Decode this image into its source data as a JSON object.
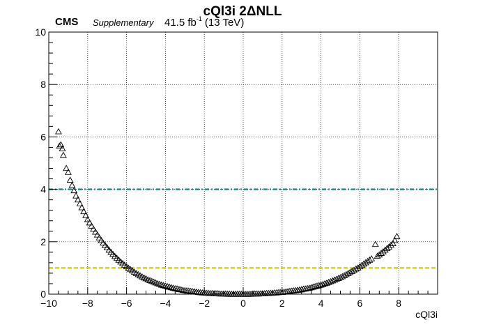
{
  "header": {
    "title": "cQl3i 2ΔNLL",
    "experiment": "CMS",
    "status": "Supplementary",
    "lumi_value": "41.5 fb",
    "lumi_exponent": "-1",
    "energy": "(13 TeV)"
  },
  "chart_data": {
    "type": "scatter",
    "title": "cQl3i 2ΔNLL",
    "xlabel": "cQl3i",
    "ylabel": "",
    "xlim": [
      -10,
      10
    ],
    "ylim": [
      0,
      10
    ],
    "xticks": [
      -10,
      -8,
      -6,
      -4,
      -2,
      0,
      2,
      4,
      6,
      8
    ],
    "xtick_labels": [
      "−10",
      "−8",
      "−6",
      "−4",
      "−2",
      "0",
      "2",
      "4",
      "6",
      "8"
    ],
    "yticks": [
      0,
      2,
      4,
      6,
      8,
      10
    ],
    "ytick_labels": [
      "0",
      "2",
      "4",
      "6",
      "8",
      "10"
    ],
    "grid": true,
    "marker": "open-triangle",
    "reference_lines": [
      {
        "y": 4,
        "color": "#2a8a8a",
        "style": "dash-dot"
      },
      {
        "y": 1,
        "color": "#d4d400",
        "style": "dashed"
      }
    ],
    "points": [
      [
        -9.5,
        6.2
      ],
      [
        -9.45,
        5.65
      ],
      [
        -9.38,
        5.7
      ],
      [
        -9.3,
        5.55
      ],
      [
        -9.25,
        5.3
      ],
      [
        -9.1,
        4.8
      ],
      [
        -9.0,
        4.65
      ],
      [
        -8.9,
        4.35
      ],
      [
        -8.8,
        4.15
      ],
      [
        -8.7,
        3.95
      ],
      [
        -8.6,
        3.75
      ],
      [
        -8.5,
        3.6
      ],
      [
        -8.4,
        3.45
      ],
      [
        -8.3,
        3.3
      ],
      [
        -8.2,
        3.15
      ],
      [
        -8.1,
        3.0
      ],
      [
        -8.0,
        2.85
      ],
      [
        -7.9,
        2.72
      ],
      [
        -7.8,
        2.6
      ],
      [
        -7.7,
        2.48
      ],
      [
        -7.6,
        2.37
      ],
      [
        -7.5,
        2.26
      ],
      [
        -7.4,
        2.15
      ],
      [
        -7.3,
        2.05
      ],
      [
        -7.2,
        1.95
      ],
      [
        -7.1,
        1.86
      ],
      [
        -7.0,
        1.77
      ],
      [
        -6.9,
        1.68
      ],
      [
        -6.8,
        1.6
      ],
      [
        -6.7,
        1.52
      ],
      [
        -6.6,
        1.44
      ],
      [
        -6.5,
        1.37
      ],
      [
        -6.4,
        1.3
      ],
      [
        -6.3,
        1.23
      ],
      [
        -6.2,
        1.17
      ],
      [
        -6.1,
        1.11
      ],
      [
        -6.0,
        1.05
      ],
      [
        -5.9,
        0.99
      ],
      [
        -5.8,
        0.94
      ],
      [
        -5.7,
        0.89
      ],
      [
        -5.6,
        0.84
      ],
      [
        -5.5,
        0.79
      ],
      [
        -5.4,
        0.75
      ],
      [
        -5.3,
        0.7
      ],
      [
        -5.2,
        0.66
      ],
      [
        -5.1,
        0.62
      ],
      [
        -5.0,
        0.59
      ],
      [
        -4.9,
        0.55
      ],
      [
        -4.8,
        0.52
      ],
      [
        -4.7,
        0.49
      ],
      [
        -4.6,
        0.46
      ],
      [
        -4.5,
        0.43
      ],
      [
        -4.4,
        0.4
      ],
      [
        -4.3,
        0.38
      ],
      [
        -4.2,
        0.35
      ],
      [
        -4.1,
        0.33
      ],
      [
        -4.0,
        0.31
      ],
      [
        -3.9,
        0.29
      ],
      [
        -3.8,
        0.27
      ],
      [
        -3.7,
        0.25
      ],
      [
        -3.6,
        0.23
      ],
      [
        -3.5,
        0.21
      ],
      [
        -3.4,
        0.2
      ],
      [
        -3.3,
        0.18
      ],
      [
        -3.2,
        0.17
      ],
      [
        -3.1,
        0.15
      ],
      [
        -3.0,
        0.14
      ],
      [
        -2.9,
        0.13
      ],
      [
        -2.8,
        0.12
      ],
      [
        -2.7,
        0.11
      ],
      [
        -2.6,
        0.1
      ],
      [
        -2.5,
        0.09
      ],
      [
        -2.4,
        0.08
      ],
      [
        -2.3,
        0.07
      ],
      [
        -2.2,
        0.06
      ],
      [
        -2.1,
        0.05
      ],
      [
        -2.0,
        0.05
      ],
      [
        -1.9,
        0.04
      ],
      [
        -1.8,
        0.04
      ],
      [
        -1.7,
        0.03
      ],
      [
        -1.6,
        0.03
      ],
      [
        -1.5,
        0.02
      ],
      [
        -1.4,
        0.02
      ],
      [
        -1.3,
        0.02
      ],
      [
        -1.2,
        0.01
      ],
      [
        -1.1,
        0.01
      ],
      [
        -1.0,
        0.01
      ],
      [
        -0.9,
        0.01
      ],
      [
        -0.8,
        0.0
      ],
      [
        -0.7,
        0.0
      ],
      [
        -0.6,
        0.0
      ],
      [
        -0.5,
        0.0
      ],
      [
        -0.4,
        0.0
      ],
      [
        -0.3,
        0.0
      ],
      [
        -0.2,
        0.0
      ],
      [
        -0.1,
        0.0
      ],
      [
        0.0,
        0.0
      ],
      [
        0.1,
        0.0
      ],
      [
        0.2,
        0.0
      ],
      [
        0.3,
        0.0
      ],
      [
        0.4,
        0.0
      ],
      [
        0.5,
        0.01
      ],
      [
        0.6,
        0.01
      ],
      [
        0.7,
        0.01
      ],
      [
        0.8,
        0.01
      ],
      [
        0.9,
        0.02
      ],
      [
        1.0,
        0.02
      ],
      [
        1.1,
        0.02
      ],
      [
        1.2,
        0.03
      ],
      [
        1.3,
        0.03
      ],
      [
        1.4,
        0.04
      ],
      [
        1.5,
        0.04
      ],
      [
        1.6,
        0.05
      ],
      [
        1.7,
        0.05
      ],
      [
        1.8,
        0.06
      ],
      [
        1.9,
        0.07
      ],
      [
        2.0,
        0.07
      ],
      [
        2.1,
        0.08
      ],
      [
        2.2,
        0.09
      ],
      [
        2.3,
        0.1
      ],
      [
        2.4,
        0.11
      ],
      [
        2.5,
        0.12
      ],
      [
        2.6,
        0.13
      ],
      [
        2.7,
        0.14
      ],
      [
        2.8,
        0.15
      ],
      [
        2.9,
        0.16
      ],
      [
        3.0,
        0.17
      ],
      [
        3.1,
        0.19
      ],
      [
        3.2,
        0.2
      ],
      [
        3.3,
        0.22
      ],
      [
        3.4,
        0.23
      ],
      [
        3.5,
        0.25
      ],
      [
        3.6,
        0.27
      ],
      [
        3.7,
        0.29
      ],
      [
        3.8,
        0.31
      ],
      [
        3.9,
        0.33
      ],
      [
        4.0,
        0.35
      ],
      [
        4.1,
        0.37
      ],
      [
        4.2,
        0.4
      ],
      [
        4.3,
        0.42
      ],
      [
        4.4,
        0.45
      ],
      [
        4.5,
        0.48
      ],
      [
        4.6,
        0.51
      ],
      [
        4.7,
        0.54
      ],
      [
        4.8,
        0.57
      ],
      [
        4.9,
        0.6
      ],
      [
        5.0,
        0.63
      ],
      [
        5.1,
        0.67
      ],
      [
        5.2,
        0.71
      ],
      [
        5.3,
        0.75
      ],
      [
        5.4,
        0.79
      ],
      [
        5.5,
        0.83
      ],
      [
        5.6,
        0.87
      ],
      [
        5.7,
        0.91
      ],
      [
        5.8,
        0.96
      ],
      [
        5.9,
        1.0
      ],
      [
        6.0,
        1.05
      ],
      [
        6.1,
        1.1
      ],
      [
        6.2,
        1.15
      ],
      [
        6.3,
        1.2
      ],
      [
        6.4,
        1.25
      ],
      [
        6.5,
        1.3
      ],
      [
        6.6,
        1.35
      ],
      [
        6.8,
        1.9
      ],
      [
        6.9,
        1.45
      ],
      [
        7.0,
        1.5
      ],
      [
        7.1,
        1.56
      ],
      [
        7.2,
        1.62
      ],
      [
        7.3,
        1.68
      ],
      [
        7.4,
        1.74
      ],
      [
        7.5,
        1.8
      ],
      [
        7.6,
        1.87
      ],
      [
        7.7,
        1.93
      ],
      [
        7.8,
        2.05
      ],
      [
        7.9,
        2.2
      ]
    ]
  }
}
